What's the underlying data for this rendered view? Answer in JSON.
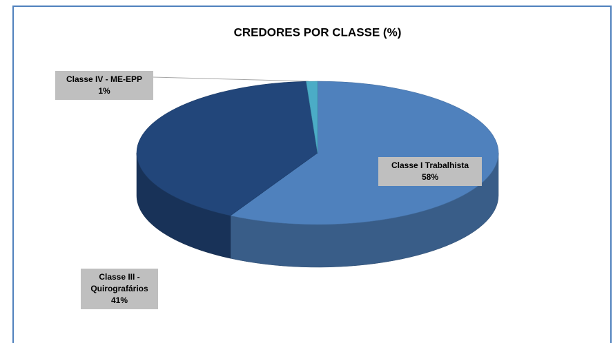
{
  "chart_data": {
    "type": "pie",
    "title": "CREDORES POR CLASSE (%)",
    "categories": [
      "Classe I Trabalhista",
      "Classe III - Quirografários",
      "Classe IV - ME-EPP"
    ],
    "values": [
      58,
      41,
      1
    ],
    "value_labels": [
      "58%",
      "41%",
      "1%"
    ],
    "colors": [
      "#4f81bd",
      "#22467a",
      "#4bacc6"
    ]
  }
}
